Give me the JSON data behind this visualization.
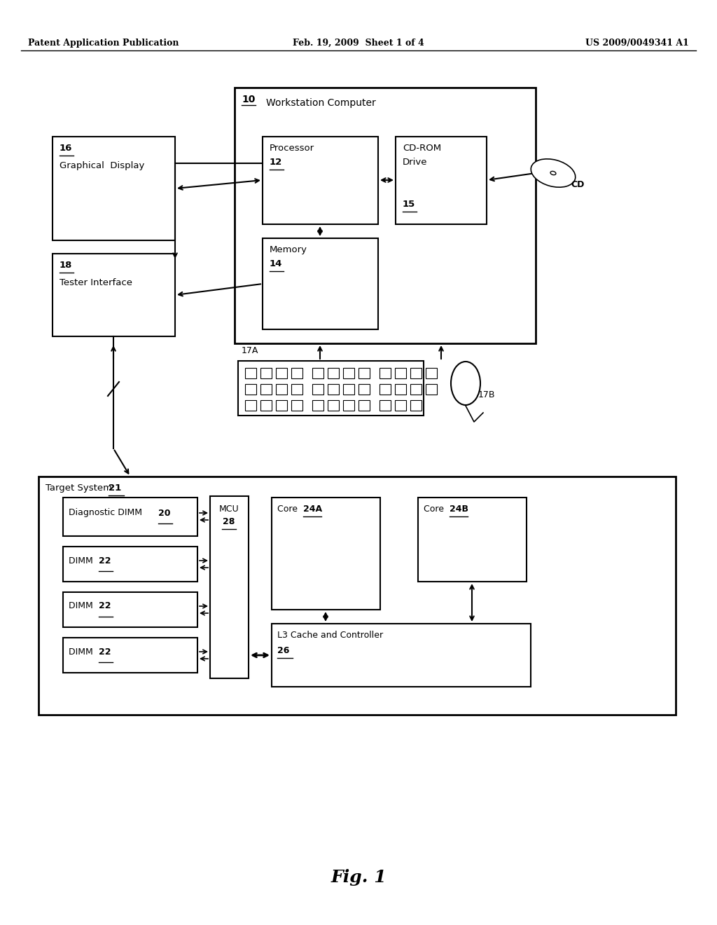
{
  "bg_color": "#ffffff",
  "header_left": "Patent Application Publication",
  "header_mid": "Feb. 19, 2009  Sheet 1 of 4",
  "header_right": "US 2009/0049341 A1",
  "fig_label": "Fig. 1"
}
